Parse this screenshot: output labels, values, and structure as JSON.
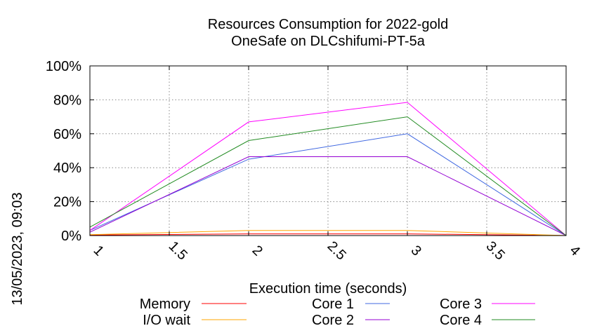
{
  "chart_data": {
    "type": "line",
    "title": "Resources Consumption for 2022-gold",
    "subtitle": "OneSafe on DLCshifumi-PT-5a",
    "xlabel": "Execution time (seconds)",
    "ylabel": "",
    "side_label": "13/05/2023, 09:03",
    "xlim": [
      1,
      4
    ],
    "ylim": [
      0,
      100
    ],
    "xticks": [
      1,
      1.5,
      2,
      2.5,
      3,
      3.5,
      4
    ],
    "xtick_labels": [
      "1",
      "1.5",
      "2",
      "2.5",
      "3",
      "3.5",
      "4"
    ],
    "yticks": [
      0,
      20,
      40,
      60,
      80,
      100
    ],
    "ytick_labels": [
      "0%",
      "20%",
      "40%",
      "60%",
      "80%",
      "100%"
    ],
    "grid": true,
    "legend_position": "bottom",
    "x": [
      1,
      2,
      3,
      4
    ],
    "series": [
      {
        "name": "Memory",
        "color": "#ff0000",
        "values": [
          0.3,
          1,
          1,
          0
        ]
      },
      {
        "name": "I/O wait",
        "color": "#ffa500",
        "values": [
          0.5,
          3,
          3,
          0
        ]
      },
      {
        "name": "Core 1",
        "color": "#4169e1",
        "values": [
          3,
          45,
          60,
          0
        ]
      },
      {
        "name": "Core 2",
        "color": "#9400d3",
        "values": [
          2,
          46.5,
          46.5,
          0
        ]
      },
      {
        "name": "Core 3",
        "color": "#ff00ff",
        "values": [
          3,
          67,
          78.5,
          0
        ]
      },
      {
        "name": "Core 4",
        "color": "#228b22",
        "values": [
          5,
          56,
          70,
          0
        ]
      }
    ]
  }
}
